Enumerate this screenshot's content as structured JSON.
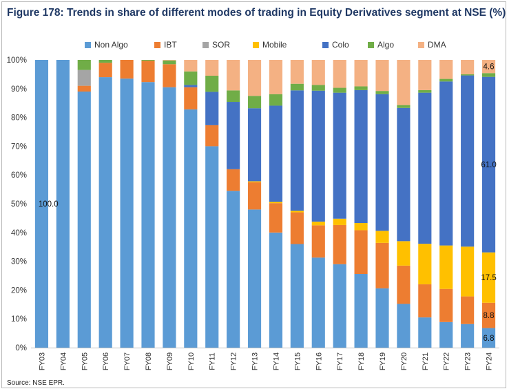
{
  "title": "Figure 178: Trends in share of different modes of trading in Equity Derivatives segment at NSE (%)",
  "source": "Source: NSE EPR.",
  "chart_data": {
    "type": "bar",
    "stacked": true,
    "categories": [
      "FY03",
      "FY04",
      "FY05",
      "FY06",
      "FY07",
      "FY08",
      "FY09",
      "FY10",
      "FY11",
      "FY12",
      "FY13",
      "FY14",
      "FY15",
      "FY16",
      "FY17",
      "FY18",
      "FY19",
      "FY20",
      "FY21",
      "FY22",
      "FY23",
      "FY24"
    ],
    "ylim": [
      0,
      100
    ],
    "yticks": [
      "0%",
      "10%",
      "20%",
      "30%",
      "40%",
      "50%",
      "60%",
      "70%",
      "80%",
      "90%",
      "100%"
    ],
    "legend_position": "top",
    "grid": false,
    "series": [
      {
        "name": "Non Algo",
        "color": "#5b9bd5",
        "values": [
          100,
          100,
          89,
          94,
          93.5,
          92.3,
          90.5,
          82.8,
          70,
          54.5,
          48,
          40,
          36,
          31.3,
          29,
          25.6,
          20.6,
          15.2,
          10.5,
          8.9,
          8.2,
          6.8
        ]
      },
      {
        "name": "IBT",
        "color": "#ed7d31",
        "values": [
          0,
          0,
          2,
          5,
          6.5,
          7.4,
          8,
          7.7,
          7.3,
          7.5,
          9.5,
          10.2,
          11,
          11.2,
          13.6,
          15.2,
          15.8,
          13.3,
          11.5,
          11.5,
          9.6,
          8.8
        ]
      },
      {
        "name": "SOR",
        "color": "#a5a5a5",
        "values": [
          0,
          0,
          5.5,
          0,
          0,
          0,
          0,
          0,
          0,
          0,
          0,
          0,
          0,
          0,
          0,
          0,
          0,
          0,
          0,
          0,
          0,
          0
        ]
      },
      {
        "name": "Mobile",
        "color": "#ffc000",
        "values": [
          0,
          0,
          0,
          0,
          0,
          0,
          0,
          0,
          0,
          0,
          0.3,
          0.5,
          0.6,
          1.3,
          2.2,
          2.5,
          4.2,
          8.5,
          14.1,
          15.1,
          17.3,
          17.5
        ]
      },
      {
        "name": "Colo",
        "color": "#4472c4",
        "values": [
          0,
          0,
          0,
          0,
          0,
          0,
          0,
          0.8,
          11.6,
          23.4,
          25.4,
          33.4,
          41.8,
          45.5,
          43.8,
          46.2,
          47.5,
          46.3,
          52.5,
          57,
          59.5,
          61
        ]
      },
      {
        "name": "Algo",
        "color": "#70ad47",
        "values": [
          0,
          0,
          3.5,
          1,
          0,
          0.3,
          1.3,
          4.7,
          5.6,
          4,
          4.3,
          4,
          2.3,
          2,
          1.7,
          1.3,
          1.1,
          1,
          0.9,
          0.9,
          0.4,
          1.3
        ]
      },
      {
        "name": "DMA",
        "color": "#f4b183",
        "values": [
          0,
          0,
          0,
          0,
          0,
          0,
          0.2,
          4,
          5.5,
          10.6,
          12.5,
          11.9,
          8.3,
          8.7,
          9.7,
          9.2,
          10.8,
          15.7,
          10.5,
          6.6,
          5,
          4.6
        ]
      }
    ],
    "data_labels": [
      {
        "category": "FY03",
        "series": "Non Algo",
        "text": "100.0"
      },
      {
        "category": "FY24",
        "series": "DMA",
        "text": "4.6"
      },
      {
        "category": "FY24",
        "series": "Colo",
        "text": "61.0"
      },
      {
        "category": "FY24",
        "series": "Mobile",
        "text": "17.5"
      },
      {
        "category": "FY24",
        "series": "IBT",
        "text": "8.8"
      },
      {
        "category": "FY24",
        "series": "Non Algo",
        "text": "6.8"
      }
    ]
  }
}
